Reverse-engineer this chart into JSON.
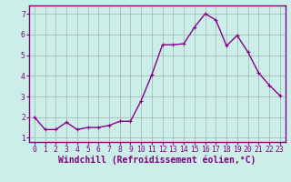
{
  "x": [
    0,
    1,
    2,
    3,
    4,
    5,
    6,
    7,
    8,
    9,
    10,
    11,
    12,
    13,
    14,
    15,
    16,
    17,
    18,
    19,
    20,
    21,
    22,
    23
  ],
  "y": [
    2.0,
    1.4,
    1.4,
    1.75,
    1.4,
    1.5,
    1.5,
    1.6,
    1.8,
    1.8,
    2.8,
    4.05,
    5.5,
    5.5,
    5.55,
    6.35,
    7.0,
    6.7,
    5.45,
    5.95,
    5.15,
    4.15,
    3.55,
    3.05
  ],
  "line_color": "#880088",
  "marker": "P",
  "marker_size": 2.5,
  "bg_color": "#cceee8",
  "grid_color": "#aabbbb",
  "xlabel": "Windchill (Refroidissement éolien,°C)",
  "xlim": [
    -0.5,
    23.5
  ],
  "ylim": [
    0.8,
    7.4
  ],
  "yticks": [
    1,
    2,
    3,
    4,
    5,
    6,
    7
  ],
  "xticks": [
    0,
    1,
    2,
    3,
    4,
    5,
    6,
    7,
    8,
    9,
    10,
    11,
    12,
    13,
    14,
    15,
    16,
    17,
    18,
    19,
    20,
    21,
    22,
    23
  ],
  "tick_fontsize": 5.8,
  "xlabel_fontsize": 7.0,
  "line_width": 1.0,
  "spine_color": "#800080",
  "tick_color": "#800080"
}
